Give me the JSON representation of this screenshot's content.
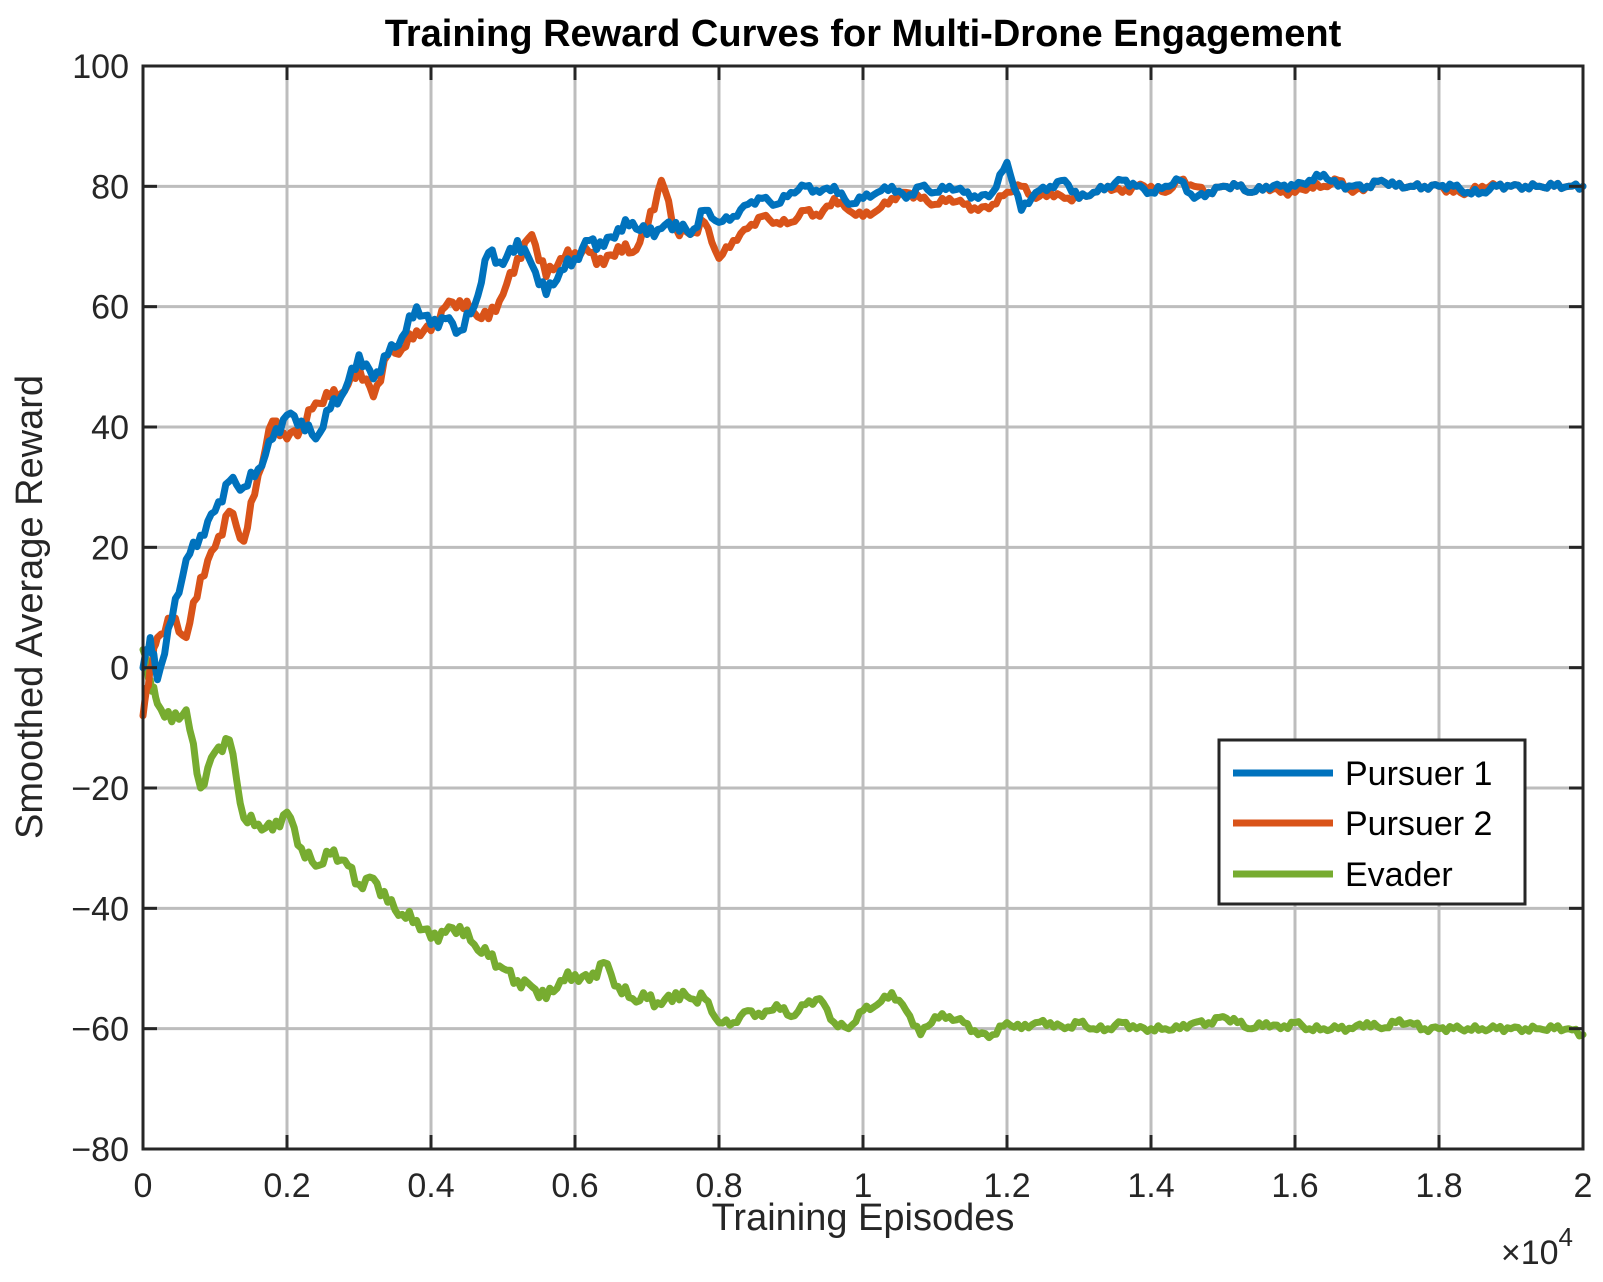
{
  "chart_data": {
    "type": "line",
    "title": "Training Reward Curves for Multi-Drone Engagement",
    "xlabel": "Training Episodes",
    "ylabel": "Smoothed Average Reward",
    "x_multiplier_base": "×10",
    "x_multiplier_exp": "4",
    "xlim": [
      0,
      2
    ],
    "ylim": [
      -80,
      100
    ],
    "xticks": [
      0,
      0.2,
      0.4,
      0.6,
      0.8,
      1,
      1.2,
      1.4,
      1.6,
      1.8,
      2
    ],
    "xtick_labels": [
      "0",
      "0.2",
      "0.4",
      "0.6",
      "0.8",
      "1",
      "1.2",
      "1.4",
      "1.6",
      "1.8",
      "2"
    ],
    "yticks": [
      -80,
      -60,
      -40,
      -20,
      0,
      20,
      40,
      60,
      80,
      100
    ],
    "ytick_labels": [
      "−80",
      "−60",
      "−40",
      "−20",
      "0",
      "20",
      "40",
      "60",
      "80",
      "100"
    ],
    "grid": true,
    "legend_position": "right-lower",
    "series": [
      {
        "name": "Pursuer 1",
        "color": "#0072BD",
        "x": [
          0,
          0.01,
          0.02,
          0.04,
          0.06,
          0.08,
          0.1,
          0.12,
          0.14,
          0.16,
          0.18,
          0.2,
          0.22,
          0.24,
          0.26,
          0.28,
          0.3,
          0.32,
          0.34,
          0.36,
          0.38,
          0.4,
          0.42,
          0.44,
          0.46,
          0.48,
          0.5,
          0.52,
          0.54,
          0.56,
          0.58,
          0.6,
          0.62,
          0.64,
          0.66,
          0.68,
          0.7,
          0.72,
          0.74,
          0.76,
          0.78,
          0.8,
          0.82,
          0.84,
          0.86,
          0.88,
          0.9,
          0.92,
          0.94,
          0.96,
          0.98,
          1.0,
          1.02,
          1.04,
          1.06,
          1.08,
          1.1,
          1.12,
          1.14,
          1.16,
          1.18,
          1.2,
          1.22,
          1.24,
          1.26,
          1.28,
          1.3,
          1.32,
          1.34,
          1.36,
          1.38,
          1.4,
          1.42,
          1.44,
          1.46,
          1.48,
          1.5,
          1.52,
          1.54,
          1.56,
          1.58,
          1.6,
          1.62,
          1.64,
          1.66,
          1.68,
          1.7,
          1.72,
          1.74,
          1.76,
          1.78,
          1.8,
          1.82,
          1.84,
          1.86,
          1.88,
          1.9,
          1.92,
          1.94,
          1.96,
          1.98,
          2.0
        ],
        "y": [
          0,
          5,
          -2,
          8,
          18,
          22,
          26,
          31,
          30,
          33,
          38,
          42,
          41,
          38,
          43,
          46,
          52,
          48,
          52,
          55,
          60,
          57,
          58,
          56,
          60,
          69,
          67,
          71,
          67,
          62,
          66,
          68,
          71,
          70,
          73,
          74,
          72,
          73,
          74,
          72,
          76,
          74,
          75,
          77,
          78,
          77,
          79,
          80,
          79,
          80,
          77,
          78,
          79,
          80,
          78,
          80,
          79,
          80,
          79,
          78,
          79,
          84,
          76,
          79,
          80,
          81,
          78,
          79,
          80,
          81,
          80,
          79,
          80,
          81,
          78,
          79,
          80,
          80,
          79,
          80,
          80,
          80,
          81,
          82,
          80,
          80,
          80,
          81,
          80,
          80,
          80,
          80,
          80,
          79,
          79,
          80,
          80,
          80,
          80,
          80,
          80,
          80
        ]
      },
      {
        "name": "Pursuer 2",
        "color": "#D95319",
        "x": [
          0,
          0.01,
          0.02,
          0.04,
          0.06,
          0.08,
          0.1,
          0.12,
          0.14,
          0.16,
          0.18,
          0.2,
          0.22,
          0.24,
          0.26,
          0.28,
          0.3,
          0.32,
          0.34,
          0.36,
          0.38,
          0.4,
          0.42,
          0.44,
          0.46,
          0.48,
          0.5,
          0.52,
          0.54,
          0.56,
          0.58,
          0.6,
          0.62,
          0.64,
          0.66,
          0.68,
          0.7,
          0.72,
          0.74,
          0.76,
          0.78,
          0.8,
          0.82,
          0.84,
          0.86,
          0.88,
          0.9,
          0.92,
          0.94,
          0.96,
          0.98,
          1.0,
          1.02,
          1.04,
          1.06,
          1.08,
          1.1,
          1.12,
          1.14,
          1.16,
          1.18,
          1.2,
          1.22,
          1.24,
          1.26,
          1.28,
          1.3,
          1.32,
          1.34,
          1.36,
          1.38,
          1.4,
          1.42,
          1.44,
          1.46,
          1.48,
          1.5,
          1.52,
          1.54,
          1.56,
          1.58,
          1.6,
          1.62,
          1.64,
          1.66,
          1.68,
          1.7,
          1.72,
          1.74,
          1.76,
          1.78,
          1.8,
          1.82,
          1.84,
          1.86,
          1.88,
          1.9,
          1.92,
          1.94,
          1.96,
          1.98,
          2.0
        ],
        "y": [
          -8,
          0,
          5,
          8,
          5,
          15,
          20,
          26,
          21,
          32,
          41,
          38,
          40,
          44,
          45,
          46,
          50,
          45,
          52,
          53,
          56,
          56,
          60,
          61,
          59,
          58,
          62,
          68,
          72,
          65,
          68,
          69,
          69,
          67,
          70,
          69,
          73,
          81,
          73,
          72,
          74,
          68,
          71,
          73,
          75,
          74,
          74,
          76,
          75,
          78,
          76,
          75,
          76,
          78,
          79,
          78,
          77,
          78,
          77,
          76,
          77,
          79,
          80,
          78,
          79,
          78,
          78,
          79,
          80,
          79,
          80,
          80,
          79,
          81,
          80,
          79,
          80,
          80,
          79,
          80,
          79,
          79,
          80,
          80,
          81,
          79,
          80,
          81,
          80,
          80,
          80,
          80,
          79,
          79,
          80,
          80,
          80,
          80,
          80,
          80,
          80,
          80
        ]
      },
      {
        "name": "Evader",
        "color": "#77AC30",
        "x": [
          0,
          0.01,
          0.02,
          0.04,
          0.06,
          0.08,
          0.1,
          0.12,
          0.14,
          0.16,
          0.18,
          0.2,
          0.22,
          0.24,
          0.26,
          0.28,
          0.3,
          0.32,
          0.34,
          0.36,
          0.38,
          0.4,
          0.42,
          0.44,
          0.46,
          0.48,
          0.5,
          0.52,
          0.54,
          0.56,
          0.58,
          0.6,
          0.62,
          0.64,
          0.66,
          0.68,
          0.7,
          0.72,
          0.74,
          0.76,
          0.78,
          0.8,
          0.82,
          0.84,
          0.86,
          0.88,
          0.9,
          0.92,
          0.94,
          0.96,
          0.98,
          1.0,
          1.02,
          1.04,
          1.06,
          1.08,
          1.1,
          1.12,
          1.14,
          1.16,
          1.18,
          1.2,
          1.22,
          1.24,
          1.26,
          1.28,
          1.3,
          1.32,
          1.34,
          1.36,
          1.38,
          1.4,
          1.42,
          1.44,
          1.46,
          1.48,
          1.5,
          1.52,
          1.54,
          1.56,
          1.58,
          1.6,
          1.62,
          1.64,
          1.66,
          1.68,
          1.7,
          1.72,
          1.74,
          1.76,
          1.78,
          1.8,
          1.82,
          1.84,
          1.86,
          1.88,
          1.9,
          1.92,
          1.94,
          1.96,
          1.98,
          2.0
        ],
        "y": [
          3,
          -2,
          -6,
          -9,
          -7,
          -20,
          -14,
          -12,
          -25,
          -26,
          -27,
          -24,
          -30,
          -33,
          -31,
          -32,
          -36,
          -35,
          -39,
          -41,
          -42,
          -45,
          -44,
          -43,
          -46,
          -48,
          -50,
          -52,
          -53,
          -55,
          -52,
          -51,
          -52,
          -49,
          -53,
          -55,
          -55,
          -56,
          -54,
          -55,
          -55,
          -59,
          -59,
          -57,
          -58,
          -56,
          -58,
          -56,
          -55,
          -59,
          -60,
          -57,
          -56,
          -54,
          -57,
          -61,
          -58,
          -58,
          -59,
          -61,
          -61,
          -59,
          -60,
          -59,
          -59,
          -60,
          -59,
          -60,
          -60,
          -59,
          -60,
          -60,
          -60,
          -60,
          -59,
          -59,
          -58,
          -59,
          -60,
          -59,
          -60,
          -59,
          -60,
          -60,
          -60,
          -60,
          -59,
          -60,
          -59,
          -59,
          -60,
          -60,
          -60,
          -60,
          -60,
          -60,
          -60,
          -60,
          -60,
          -60,
          -60,
          -61
        ]
      }
    ]
  }
}
